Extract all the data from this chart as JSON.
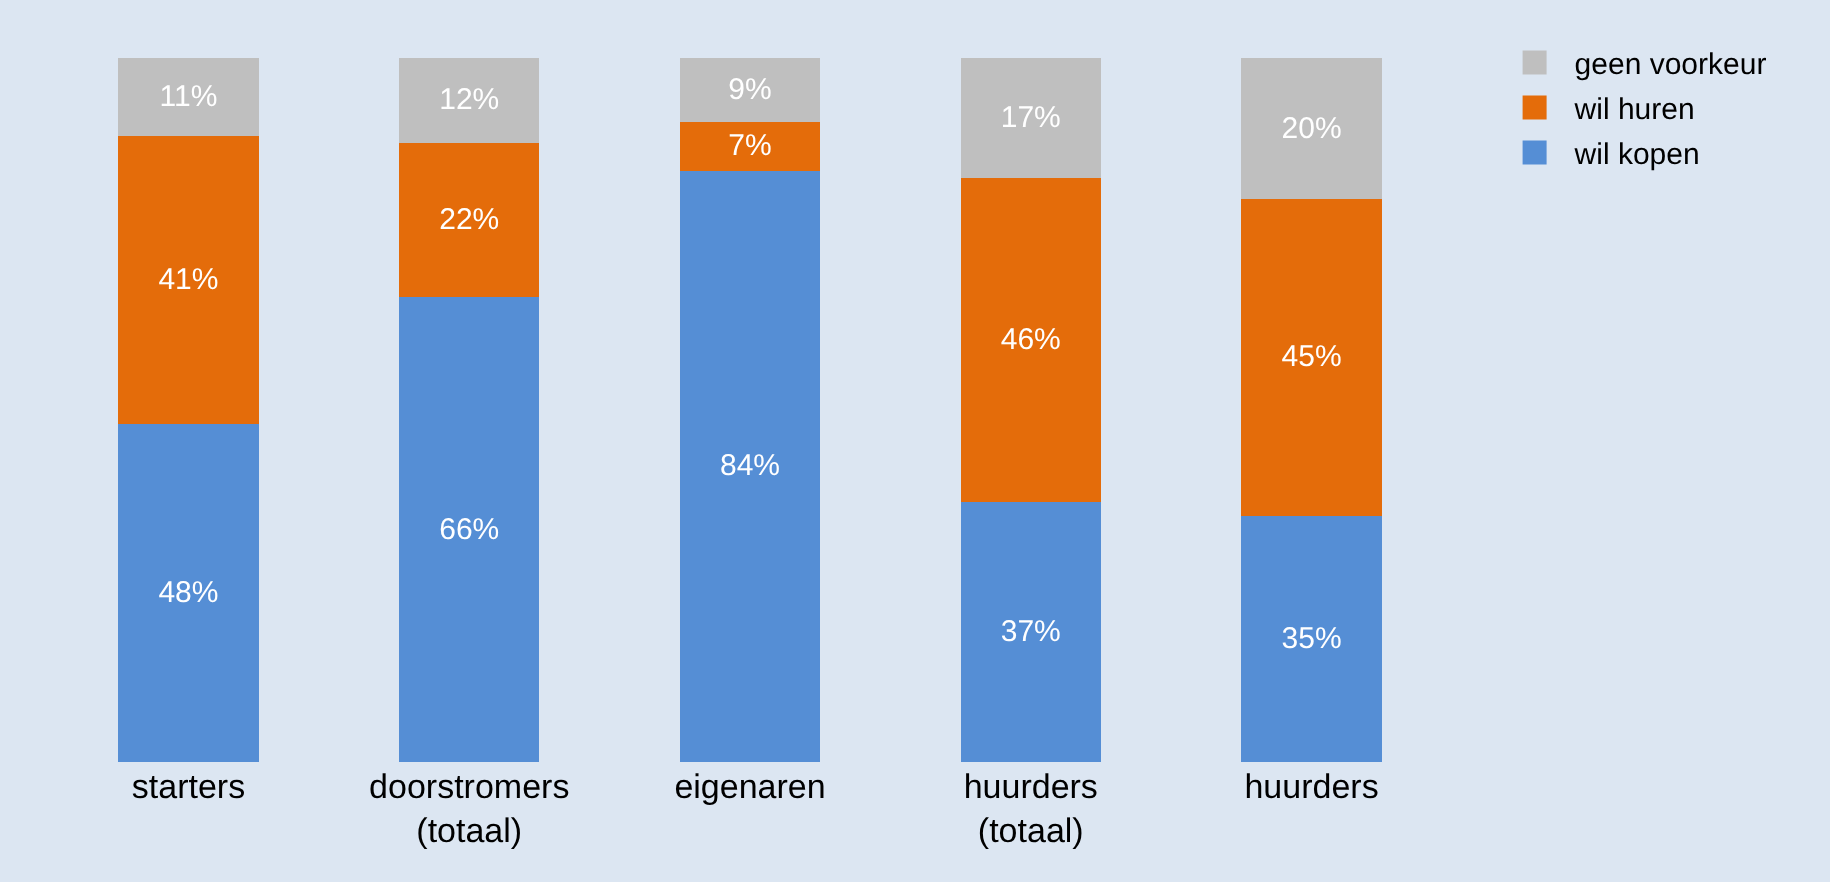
{
  "chart_data": {
    "type": "bar",
    "stacked": true,
    "legend": "top right",
    "grid": false,
    "tick_labels": "x",
    "categories": [
      "starters",
      "doorstromers\n(totaal)",
      "eigenaren",
      "huurders\n(totaal)",
      "huurders"
    ],
    "series": [
      {
        "name": "wil kopen",
        "color": "#558ed5",
        "values": [
          48,
          66,
          84,
          37,
          35
        ],
        "value_labels": [
          "48%",
          "66%",
          "84%",
          "37%",
          "35%"
        ]
      },
      {
        "name": "wil huren",
        "color": "#e46c0a",
        "values": [
          41,
          22,
          7,
          46,
          45
        ],
        "value_labels": [
          "41%",
          "22%",
          "7%",
          "46%",
          "45%"
        ]
      },
      {
        "name": "geen voorkeur",
        "color": "#bfbfbf",
        "values": [
          11,
          12,
          9,
          17,
          20
        ],
        "value_labels": [
          "11%",
          "12%",
          "9%",
          "17%",
          "20%"
        ]
      }
    ]
  }
}
